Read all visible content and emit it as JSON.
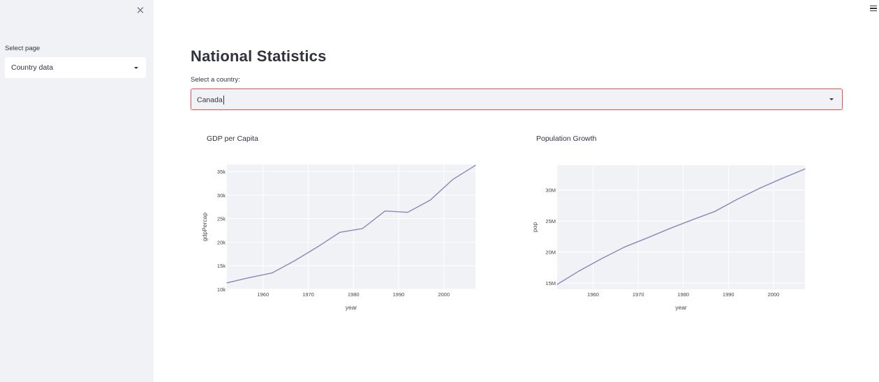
{
  "sidebar": {
    "close_icon": "close-icon",
    "select_label": "Select page",
    "select_value": "Country data"
  },
  "header": {
    "menu_icon": "hamburger-menu-icon"
  },
  "main": {
    "title": "National Statistics",
    "country_label": "Select a country:",
    "country_value": "Canada"
  },
  "colors": {
    "line": "#8c85b8",
    "plot_bg": "#f0f2f6",
    "accent": "#ff4b4b"
  },
  "chart_data": [
    {
      "type": "line",
      "title": "GDP per Capita",
      "xlabel": "year",
      "ylabel": "gdpPercap",
      "xlim": [
        1952,
        2007
      ],
      "ylim": [
        10000,
        36500
      ],
      "x_ticks": [
        1960,
        1970,
        1980,
        1990,
        2000
      ],
      "x_tick_labels": [
        "1960",
        "1970",
        "1980",
        "1990",
        "2000"
      ],
      "y_ticks": [
        10000,
        15000,
        20000,
        25000,
        30000,
        35000
      ],
      "y_tick_labels": [
        "10k",
        "15k",
        "20k",
        "25k",
        "30k",
        "35k"
      ],
      "x": [
        1952,
        1957,
        1962,
        1967,
        1972,
        1977,
        1982,
        1987,
        1992,
        1997,
        2002,
        2007
      ],
      "y": [
        11367,
        12490,
        13462,
        16077,
        18971,
        22091,
        22899,
        26627,
        26343,
        28955,
        33329,
        36319
      ],
      "grid": true
    },
    {
      "type": "line",
      "title": "Population Growth",
      "xlabel": "year",
      "ylabel": "pop",
      "xlim": [
        1952,
        2007
      ],
      "ylim": [
        14000000,
        34000000
      ],
      "x_ticks": [
        1960,
        1970,
        1980,
        1990,
        2000
      ],
      "x_tick_labels": [
        "1960",
        "1970",
        "1980",
        "1990",
        "2000"
      ],
      "y_ticks": [
        15000000,
        20000000,
        25000000,
        30000000
      ],
      "y_tick_labels": [
        "15M",
        "20M",
        "25M",
        "30M"
      ],
      "x": [
        1952,
        1957,
        1962,
        1967,
        1972,
        1977,
        1982,
        1987,
        1992,
        1997,
        2002,
        2007
      ],
      "y": [
        14785584,
        17010154,
        18985849,
        20819767,
        22284500,
        23796400,
        25201900,
        26549700,
        28523502,
        30305843,
        31902268,
        33390141
      ],
      "grid": true
    }
  ]
}
